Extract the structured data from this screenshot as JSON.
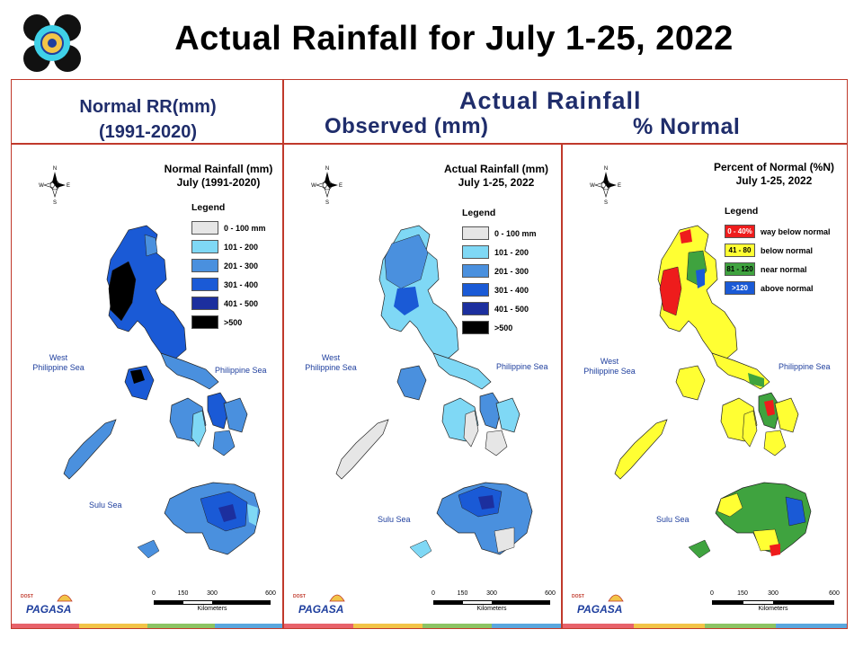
{
  "slide": {
    "title": "Actual Rainfall for July 1-25, 2022",
    "header_left_line1": "Normal RR(mm)",
    "header_left_line2": "(1991-2020)",
    "header_right_title": "Actual Rainfall",
    "header_observed": "Observed (mm)",
    "header_pct_normal": "% Normal"
  },
  "compass_labels": {
    "n": "N",
    "s": "S",
    "e": "E",
    "w": "W"
  },
  "panels": [
    {
      "id": "normal",
      "title_line1": "Normal Rainfall (mm)",
      "title_line2": "July (1991-2020)",
      "legend_title": "Legend",
      "legend": [
        {
          "label": "0 - 100 mm",
          "color": "#e6e6e6"
        },
        {
          "label": "101 - 200",
          "color": "#7fd8f5"
        },
        {
          "label": "201 - 300",
          "color": "#4a90de"
        },
        {
          "label": "301 - 400",
          "color": "#1a5ad6"
        },
        {
          "label": "401 - 500",
          "color": "#1c2f9e"
        },
        {
          "label": ">500",
          "color": "#000000"
        }
      ],
      "seas": {
        "west_line1": "West",
        "west_line2": "Philippine Sea",
        "east": "Philippine Sea",
        "south": "Sulu Sea"
      }
    },
    {
      "id": "actual",
      "title_line1": "Actual Rainfall (mm)",
      "title_line2": "July 1-25, 2022",
      "legend_title": "Legend",
      "legend": [
        {
          "label": "0 - 100 mm",
          "color": "#e6e6e6"
        },
        {
          "label": "101 - 200",
          "color": "#7fd8f5"
        },
        {
          "label": "201 - 300",
          "color": "#4a90de"
        },
        {
          "label": "301 - 400",
          "color": "#1a5ad6"
        },
        {
          "label": "401 - 500",
          "color": "#1c2f9e"
        },
        {
          "label": ">500",
          "color": "#000000"
        }
      ],
      "seas": {
        "west_line1": "West",
        "west_line2": "Philippine Sea",
        "east": "Philippine Sea",
        "south": "Sulu Sea"
      }
    },
    {
      "id": "percent",
      "title_line1": "Percent of Normal (%N)",
      "title_line2": "July 1-25, 2022",
      "legend_title": "Legend",
      "legend": [
        {
          "swatch_label": "0 - 40%",
          "label": "way below normal",
          "color": "#ee1c1c"
        },
        {
          "swatch_label": "41 - 80",
          "label": "below normal",
          "color": "#ffff33"
        },
        {
          "swatch_label": "81 - 120",
          "label": "near normal",
          "color": "#3fa33f"
        },
        {
          "swatch_label": ">120",
          "label": "above normal",
          "color": "#1a5ad6"
        }
      ],
      "seas": {
        "west_line1": "West",
        "west_line2": "Philippine Sea",
        "east": "Philippine Sea",
        "south": "Sulu Sea"
      }
    }
  ],
  "scale": {
    "ticks": [
      "0",
      "150",
      "300",
      "600"
    ],
    "unit": "Kilometers"
  },
  "branding": {
    "dost_pagasa": "PAGASA",
    "dost": "DOST"
  },
  "colors": {
    "frame": "#c0392b",
    "header_text": "#1f2d6b",
    "bottom_bar": [
      "#e8636b",
      "#f2c447",
      "#8cc463",
      "#5aa7de"
    ]
  }
}
